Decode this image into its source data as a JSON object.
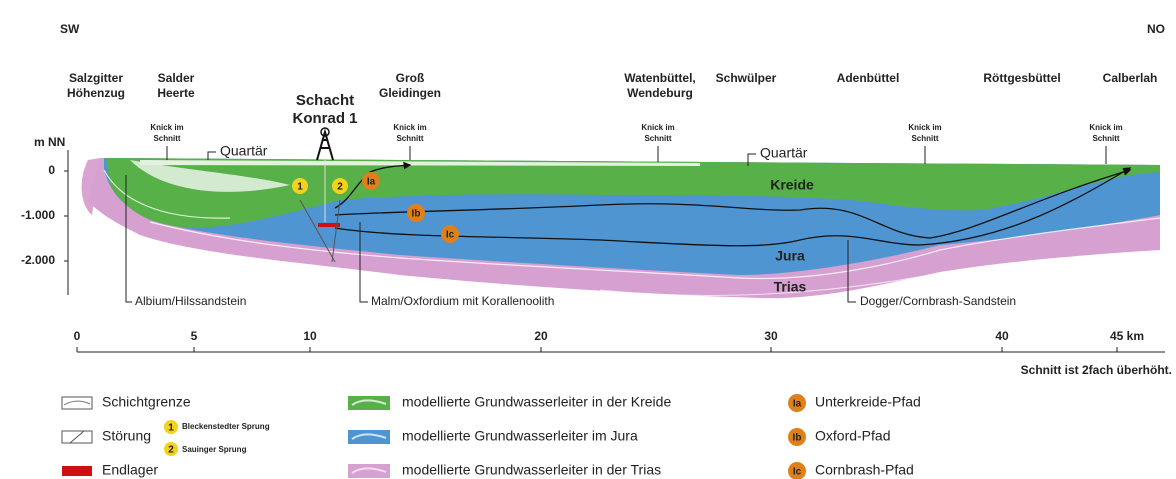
{
  "direction": {
    "left": "SW",
    "right": "NO"
  },
  "places": [
    {
      "lines": [
        "Salzgitter",
        "Höhenzug"
      ]
    },
    {
      "lines": [
        "Salder",
        "Heerte"
      ]
    },
    {
      "lines": [
        "Schacht",
        "Konrad 1"
      ]
    },
    {
      "lines": [
        "Groß",
        "Gleidingen"
      ]
    },
    {
      "lines": [
        "Watenbüttel,",
        "Wendeburg"
      ]
    },
    {
      "lines": [
        "Schwülper"
      ]
    },
    {
      "lines": [
        "Adenbüttel"
      ]
    },
    {
      "lines": [
        "Röttgesbüttel"
      ]
    },
    {
      "lines": [
        "Calberlah"
      ]
    }
  ],
  "bends": [
    [
      "Knick im",
      "Schnitt"
    ],
    [
      "Knick im",
      "Schnitt"
    ],
    [
      "Knick im",
      "Schnitt"
    ],
    [
      "Knick im",
      "Schnitt"
    ],
    [
      "Knick im",
      "Schnitt"
    ]
  ],
  "y_axis": {
    "unit": "m NN",
    "labels": [
      "0",
      "-1.000",
      "-2.000"
    ]
  },
  "x_axis": {
    "labels": [
      "0",
      "5",
      "10",
      "20",
      "30",
      "40",
      "45 km"
    ]
  },
  "units": {
    "quaternary": [
      "Quartär",
      "Quartär"
    ],
    "cretaceous": "Kreide",
    "jurassic": "Jura",
    "triassic": "Trias"
  },
  "markers": {
    "faults": [
      "1",
      "2"
    ],
    "paths": [
      "Ia",
      "Ib",
      "Ic"
    ]
  },
  "annotations": [
    "Albium/Hilssandstein",
    "Malm/Oxfordium mit Korallenoolith",
    "Dogger/Cornbrash-Sandstein"
  ],
  "note": "Schnitt ist 2fach überhöht.",
  "legend": {
    "boundary": "Schichtgrenze",
    "fault": "Störung",
    "fault_names": [
      "Bleckenstedter Sprung",
      "Sauinger Sprung"
    ],
    "repository": "Endlager",
    "aquifers": [
      "modellierte Grundwasserleiter in der Kreide",
      "modellierte Grundwasserleiter im Jura",
      "modellierte Grundwasserleiter in der Trias"
    ],
    "paths": [
      "Unterkreide-Pfad",
      "Oxford-Pfad",
      "Cornbrash-Pfad"
    ]
  }
}
